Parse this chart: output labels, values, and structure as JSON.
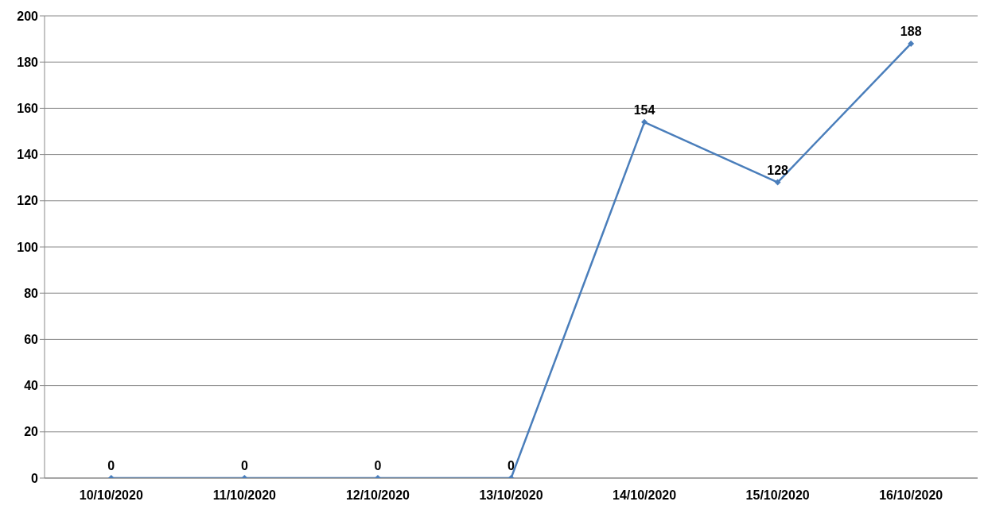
{
  "chart_data": {
    "type": "line",
    "categories": [
      "10/10/2020",
      "11/10/2020",
      "12/10/2020",
      "13/10/2020",
      "14/10/2020",
      "15/10/2020",
      "16/10/2020"
    ],
    "series": [
      {
        "color": "#4a7ebb",
        "values": [
          0,
          0,
          0,
          0,
          154,
          128,
          188
        ]
      }
    ],
    "ylim": [
      0,
      200
    ],
    "yticks": [
      0,
      20,
      40,
      60,
      80,
      100,
      120,
      140,
      160,
      180,
      200
    ],
    "grid": "y",
    "marker": "diamond",
    "line_style": "solid",
    "data_labels": true
  }
}
